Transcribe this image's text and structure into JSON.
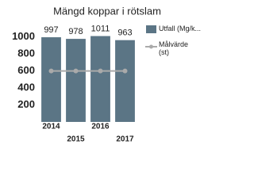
{
  "chart_data": {
    "type": "bar",
    "title": "Mängd koppar i rötslam",
    "categories": [
      "2014",
      "2015",
      "2016",
      "2017"
    ],
    "series": [
      {
        "name": "Utfall (Mg/k...",
        "color": "#5b7585",
        "values": [
          997,
          978,
          1011,
          963
        ],
        "show_values": true
      },
      {
        "name": "Målvärde (st)",
        "color": "#aaaaaa",
        "type": "line",
        "values": [
          600,
          600,
          600,
          600
        ]
      }
    ],
    "ylim": [
      0,
      1100
    ],
    "yticks": [
      200,
      400,
      600,
      800,
      1000
    ],
    "grid": false,
    "legend": "right"
  }
}
